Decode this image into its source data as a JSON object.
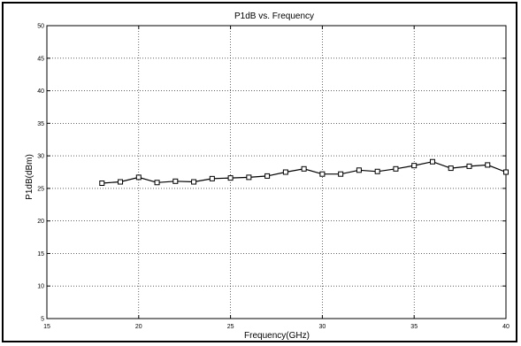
{
  "chart_data": {
    "type": "line",
    "title": "P1dB vs. Frequency",
    "xlabel": "Frequency(GHz)",
    "ylabel": "P1dB(dBm)",
    "xlim": [
      15,
      40
    ],
    "ylim": [
      5,
      50
    ],
    "xticks": [
      15,
      20,
      25,
      30,
      35,
      40
    ],
    "yticks": [
      5,
      10,
      15,
      20,
      25,
      30,
      35,
      40,
      45,
      50
    ],
    "grid": true,
    "marker": "square",
    "series": [
      {
        "x": [
          18,
          19,
          20,
          21,
          22,
          23,
          24,
          25,
          26,
          27,
          28,
          29,
          30,
          31,
          32,
          33,
          34,
          35,
          36,
          37,
          38,
          39,
          40
        ],
        "y": [
          25.8,
          26.0,
          26.7,
          25.9,
          26.1,
          26.0,
          26.5,
          26.6,
          26.7,
          26.9,
          27.5,
          28.0,
          27.2,
          27.2,
          27.8,
          27.6,
          28.0,
          28.5,
          29.1,
          28.1,
          28.4,
          28.6,
          27.5
        ]
      }
    ]
  }
}
